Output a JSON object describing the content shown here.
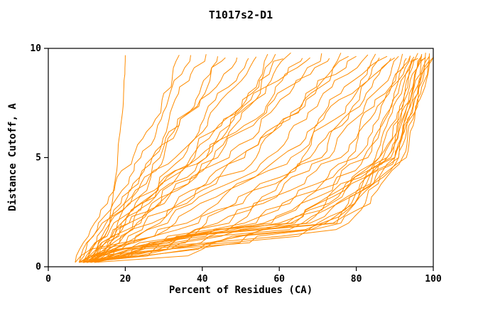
{
  "chart_data": {
    "type": "line",
    "title": "T1017s2-D1",
    "xlabel": "Percent of Residues (CA)",
    "ylabel": "Distance Cutoff, A",
    "xlim": [
      0,
      100
    ],
    "ylim": [
      0,
      10
    ],
    "xticks": [
      0,
      20,
      40,
      60,
      80,
      100
    ],
    "yticks": [
      0,
      5,
      10
    ],
    "grid": false,
    "legend": null,
    "line_color": "#FF8C00",
    "axis_color": "#000000",
    "background": "#FFFFFF",
    "y_control_levels": [
      0.2,
      2,
      5,
      9.7
    ],
    "series_note": "Each series is the estimated percent-of-residues (x) at distance cutoffs 0.2, 2, 5 and 9.7 A for one model curve.",
    "series": [
      [
        10,
        16,
        18,
        20
      ],
      [
        7,
        12,
        22,
        34
      ],
      [
        8,
        13,
        24,
        37
      ],
      [
        9,
        15,
        27,
        41
      ],
      [
        9,
        16,
        29,
        44
      ],
      [
        8,
        14,
        27,
        46
      ],
      [
        9,
        16,
        30,
        49
      ],
      [
        10,
        18,
        33,
        52
      ],
      [
        10,
        19,
        35,
        54
      ],
      [
        11,
        20,
        37,
        57
      ],
      [
        11,
        21,
        39,
        59
      ],
      [
        12,
        22,
        41,
        61
      ],
      [
        12,
        24,
        43,
        63
      ],
      [
        9,
        17,
        38,
        66
      ],
      [
        10,
        19,
        41,
        68
      ],
      [
        10,
        21,
        44,
        71
      ],
      [
        11,
        23,
        47,
        73
      ],
      [
        11,
        25,
        49,
        76
      ],
      [
        12,
        27,
        51,
        78
      ],
      [
        12,
        29,
        54,
        80
      ],
      [
        13,
        31,
        57,
        83
      ],
      [
        7,
        33,
        60,
        85
      ],
      [
        8,
        36,
        63,
        86
      ],
      [
        8,
        39,
        66,
        88
      ],
      [
        9,
        41,
        68,
        89
      ],
      [
        9,
        44,
        71,
        90
      ],
      [
        10,
        47,
        73,
        91
      ],
      [
        10,
        49,
        76,
        92
      ],
      [
        11,
        51,
        78,
        93
      ],
      [
        11,
        54,
        80,
        94
      ],
      [
        12,
        56,
        82,
        94
      ],
      [
        8,
        58,
        83,
        95
      ],
      [
        9,
        60,
        85,
        95
      ],
      [
        9,
        62,
        86,
        96
      ],
      [
        10,
        64,
        87,
        96
      ],
      [
        10,
        66,
        88,
        97
      ],
      [
        11,
        68,
        89,
        97
      ],
      [
        11,
        70,
        90,
        98
      ],
      [
        12,
        72,
        90,
        98
      ],
      [
        8,
        74,
        91,
        99
      ],
      [
        9,
        76,
        92,
        99
      ],
      [
        9,
        78,
        93,
        100
      ],
      [
        10,
        75,
        91,
        100
      ],
      [
        10,
        71,
        90,
        99
      ],
      [
        11,
        67,
        88,
        98
      ],
      [
        12,
        63,
        86,
        97
      ]
    ]
  }
}
